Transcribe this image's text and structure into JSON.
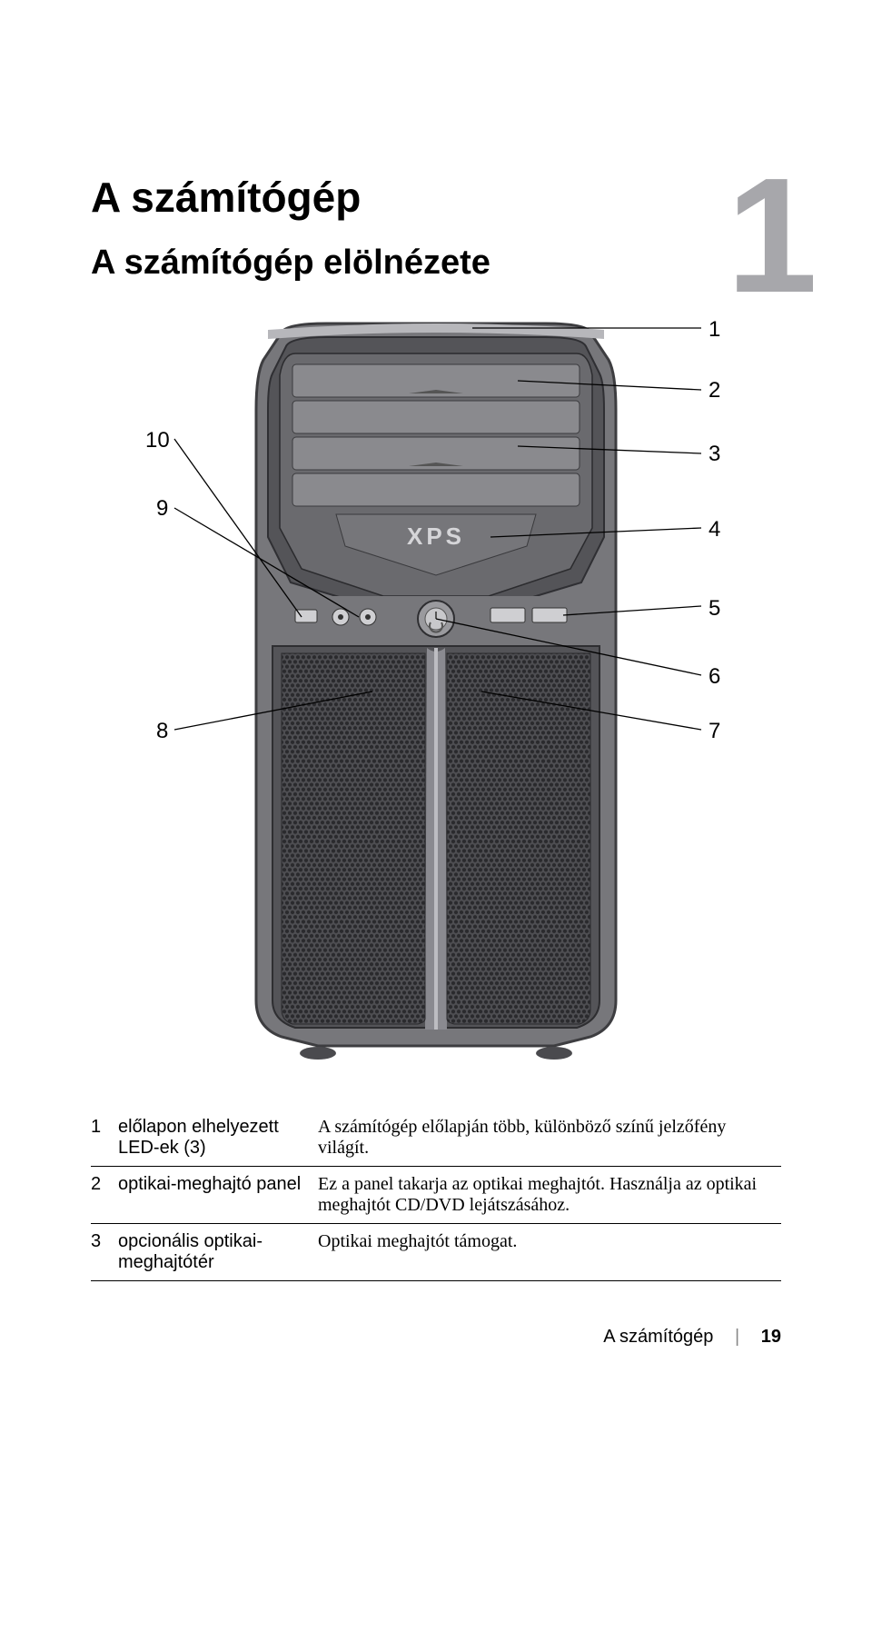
{
  "chapter_number": "1",
  "heading": "A számítógép",
  "subheading": "A számítógép elölnézete",
  "callouts": {
    "c1": "1",
    "c2": "2",
    "c3": "3",
    "c4": "4",
    "c5": "5",
    "c6": "6",
    "c7": "7",
    "c8": "8",
    "c9": "9",
    "c10": "10"
  },
  "legend": [
    {
      "num": "1",
      "label": "előlapon elhelyezett LED-ek (3)",
      "desc": "A számítógép előlapján több, különböző színű jelzőfény világít."
    },
    {
      "num": "2",
      "label": "optikai-meghajtó panel",
      "desc": "Ez a panel takarja az optikai meghajtót. Használja az optikai meghajtót CD/DVD lejátszásához."
    },
    {
      "num": "3",
      "label": "opcionális optikai-meghajtótér",
      "desc": "Optikai meghajtót támogat."
    }
  ],
  "footer": {
    "section": "A számítógép",
    "page": "19"
  },
  "style": {
    "body_fill": "#77777b",
    "body_stroke": "#3d3d40",
    "panel_light": "#9c9ca0",
    "panel_dark": "#545458",
    "line": "#000000",
    "line_w": "1.3",
    "grille": "#4e4e52",
    "grille_hole": "#2a2a2d",
    "logo": "#d5d5d8"
  }
}
